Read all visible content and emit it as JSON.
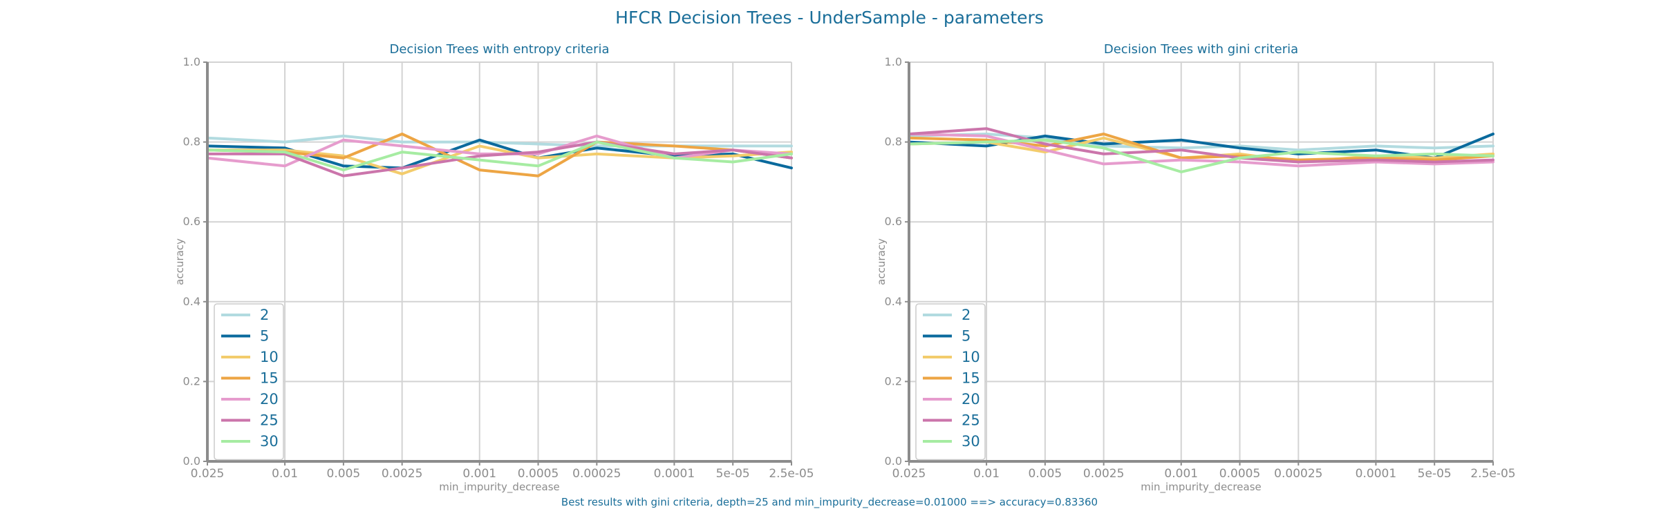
{
  "figure": {
    "title": "HFCR Decision Trees - UnderSample - parameters",
    "footer": "Best results with gini criteria, depth=25 and min_impurity_decrease=0.01000 ==> accuracy=0.83360",
    "text_color": "#1a6e99"
  },
  "chart_data": [
    {
      "type": "line",
      "title": "Decision Trees with entropy criteria",
      "xlabel": "min_impurity_decrease",
      "ylabel": "accuracy",
      "ylim": [
        0,
        1
      ],
      "yticks": [
        "0.0",
        "0.2",
        "0.4",
        "0.6",
        "0.8",
        "1.0"
      ],
      "x_categories": [
        "0.025",
        "0.01",
        "0.005",
        "0.0025",
        "0.001",
        "0.0005",
        "0.00025",
        "0.0001",
        "5e-05",
        "2.5e-05"
      ],
      "x_tick_labels": [
        "0.025",
        "0.01",
        "0.005",
        "0.0025",
        "0.001",
        "0.0005",
        "0.00025",
        "0.0001",
        "5e-05",
        "2.5e-05"
      ],
      "grid": true,
      "legend": "lower-left",
      "series": [
        {
          "name": "2",
          "color": "#b2dbe0",
          "values": [
            0.81,
            0.8,
            0.815,
            0.8,
            0.8,
            0.795,
            0.79,
            0.79,
            0.79,
            0.79
          ]
        },
        {
          "name": "5",
          "color": "#0a6a9d",
          "values": [
            0.79,
            0.785,
            0.74,
            0.735,
            0.805,
            0.76,
            0.785,
            0.765,
            0.77,
            0.735
          ]
        },
        {
          "name": "10",
          "color": "#f3cc6c",
          "values": [
            0.78,
            0.78,
            0.765,
            0.72,
            0.79,
            0.76,
            0.77,
            0.76,
            0.765,
            0.775
          ]
        },
        {
          "name": "15",
          "color": "#eda544",
          "values": [
            0.78,
            0.775,
            0.76,
            0.82,
            0.73,
            0.715,
            0.8,
            0.79,
            0.78,
            0.76
          ]
        },
        {
          "name": "20",
          "color": "#e69ccd",
          "values": [
            0.76,
            0.74,
            0.805,
            0.79,
            0.77,
            0.77,
            0.815,
            0.76,
            0.78,
            0.77
          ]
        },
        {
          "name": "25",
          "color": "#cb75ab",
          "values": [
            0.77,
            0.77,
            0.715,
            0.735,
            0.765,
            0.775,
            0.8,
            0.77,
            0.78,
            0.76
          ]
        },
        {
          "name": "30",
          "color": "#a6eca2",
          "values": [
            0.78,
            0.775,
            0.73,
            0.775,
            0.755,
            0.74,
            0.8,
            0.76,
            0.75,
            0.77
          ]
        }
      ]
    },
    {
      "type": "line",
      "title": "Decision Trees with gini criteria",
      "xlabel": "min_impurity_decrease",
      "ylabel": "accuracy",
      "ylim": [
        0,
        1
      ],
      "yticks": [
        "0.0",
        "0.2",
        "0.4",
        "0.6",
        "0.8",
        "1.0"
      ],
      "x_categories": [
        "0.025",
        "0.01",
        "0.005",
        "0.0025",
        "0.001",
        "0.0005",
        "0.00025",
        "0.0001",
        "5e-05",
        "2.5e-05"
      ],
      "x_tick_labels": [
        "0.025",
        "0.01",
        "0.005",
        "0.0025",
        "0.001",
        "0.0005",
        "0.00025",
        "0.0001",
        "5e-05",
        "2.5e-05"
      ],
      "grid": true,
      "legend": "lower-left",
      "series": [
        {
          "name": "2",
          "color": "#b2dbe0",
          "values": [
            0.815,
            0.82,
            0.81,
            0.79,
            0.785,
            0.79,
            0.78,
            0.79,
            0.785,
            0.79
          ]
        },
        {
          "name": "5",
          "color": "#0a6a9d",
          "values": [
            0.8,
            0.79,
            0.815,
            0.795,
            0.805,
            0.785,
            0.77,
            0.78,
            0.76,
            0.82
          ]
        },
        {
          "name": "10",
          "color": "#f3cc6c",
          "values": [
            0.795,
            0.8,
            0.775,
            0.81,
            0.76,
            0.77,
            0.75,
            0.765,
            0.76,
            0.77
          ]
        },
        {
          "name": "15",
          "color": "#eda544",
          "values": [
            0.81,
            0.805,
            0.79,
            0.82,
            0.76,
            0.765,
            0.755,
            0.76,
            0.755,
            0.765
          ]
        },
        {
          "name": "20",
          "color": "#e69ccd",
          "values": [
            0.82,
            0.815,
            0.78,
            0.745,
            0.755,
            0.75,
            0.74,
            0.75,
            0.745,
            0.75
          ]
        },
        {
          "name": "25",
          "color": "#cb75ab",
          "values": [
            0.82,
            0.8336,
            0.795,
            0.77,
            0.78,
            0.76,
            0.75,
            0.755,
            0.75,
            0.755
          ]
        },
        {
          "name": "30",
          "color": "#a6eca2",
          "values": [
            0.795,
            0.8,
            0.805,
            0.785,
            0.725,
            0.76,
            0.775,
            0.765,
            0.77,
            0.765
          ]
        }
      ]
    }
  ]
}
